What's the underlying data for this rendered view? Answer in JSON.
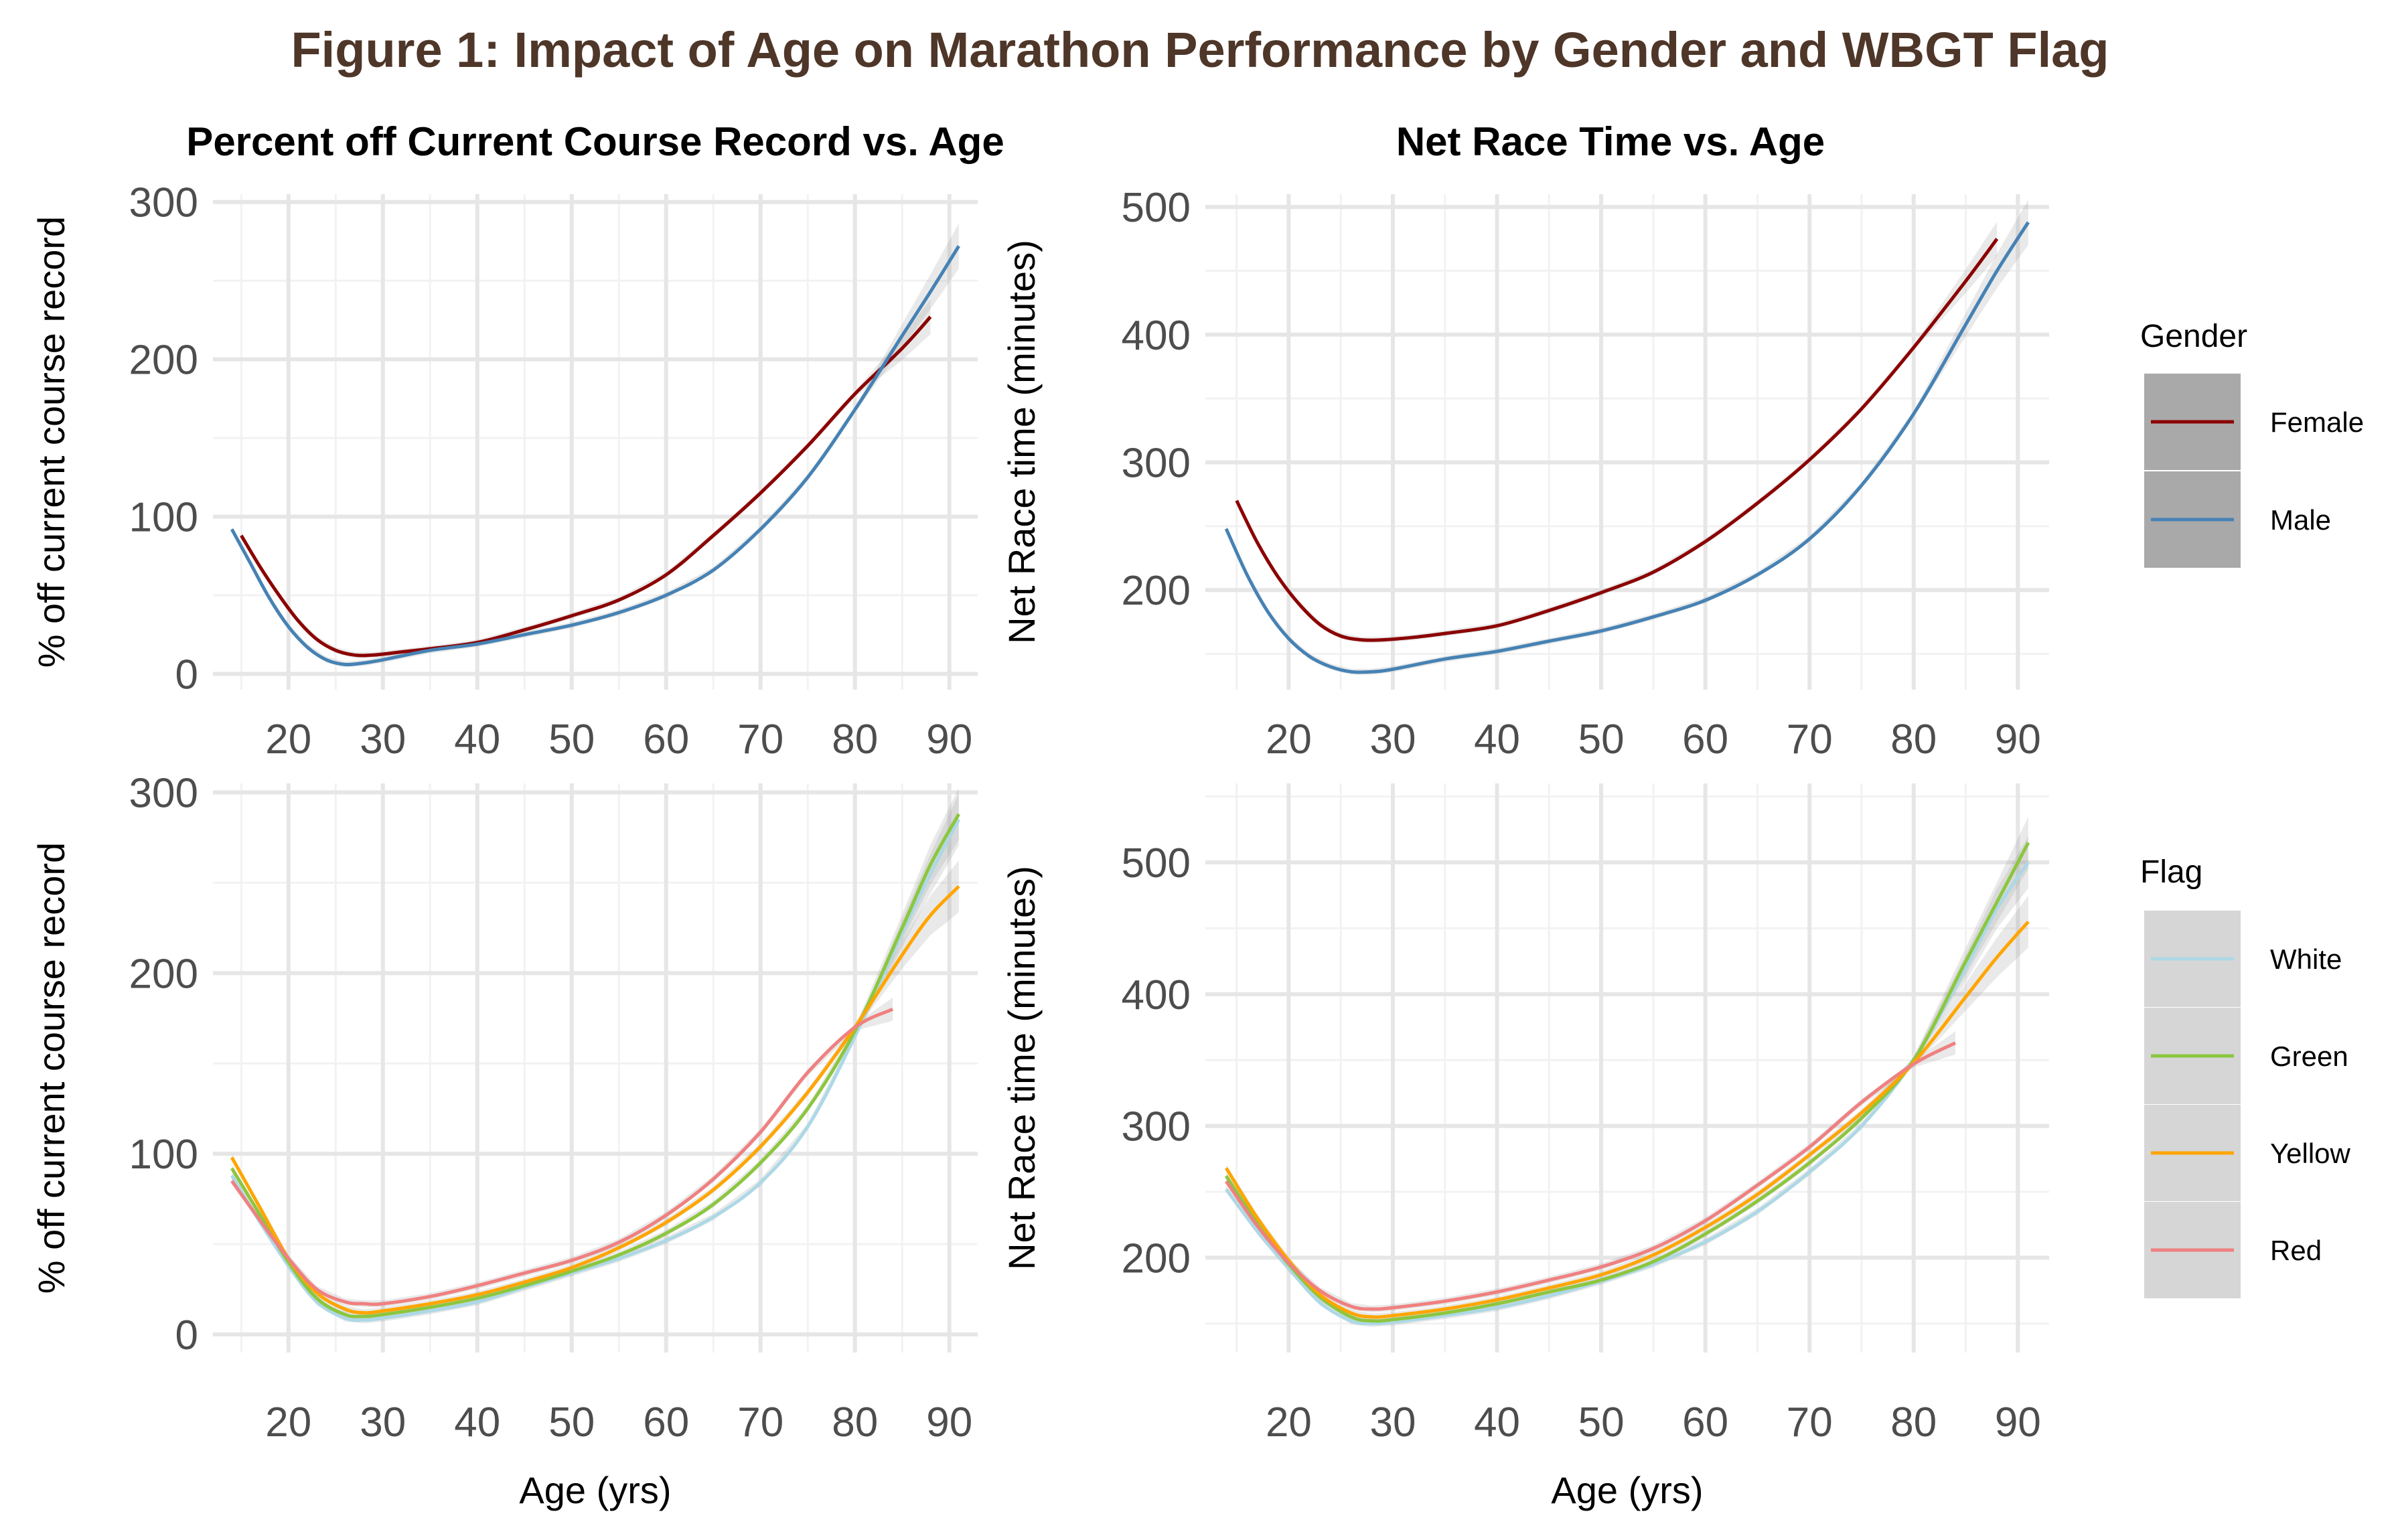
{
  "figure_title": "Figure 1: Impact of Age on Marathon Performance by Gender and WBGT Flag",
  "chart_data": [
    {
      "type": "line",
      "title": "Percent off Current Course Record vs. Age",
      "xlabel": "",
      "ylabel": "% off current course record",
      "xlim": [
        12,
        93
      ],
      "ylim": [
        -10,
        305
      ],
      "xticks": [
        20,
        30,
        40,
        50,
        60,
        70,
        80,
        90
      ],
      "yticks": [
        0,
        100,
        200,
        300
      ],
      "grid": true,
      "legend": "Gender",
      "series": [
        {
          "name": "Female",
          "color": "#8B0000",
          "x": [
            15,
            17,
            19,
            21,
            23,
            25,
            27,
            29,
            32,
            35,
            40,
            45,
            50,
            55,
            60,
            65,
            70,
            75,
            80,
            85,
            88
          ],
          "y": [
            88,
            68,
            50,
            34,
            22,
            15,
            12,
            12,
            14,
            16,
            20,
            28,
            37,
            47,
            63,
            88,
            115,
            145,
            178,
            207,
            227
          ]
        },
        {
          "name": "Male",
          "color": "#4682B4",
          "x": [
            14,
            16,
            18,
            20,
            22,
            24,
            26,
            28,
            30,
            35,
            40,
            45,
            50,
            55,
            60,
            65,
            70,
            75,
            80,
            85,
            88,
            91
          ],
          "y": [
            92,
            70,
            48,
            30,
            17,
            9,
            6,
            7,
            9,
            15,
            19,
            25,
            31,
            39,
            50,
            66,
            92,
            125,
            168,
            215,
            243,
            272
          ]
        }
      ]
    },
    {
      "type": "line",
      "title": "Net Race Time vs. Age",
      "xlabel": "",
      "ylabel": "Net Race time (minutes)",
      "xlim": [
        12,
        93
      ],
      "ylim": [
        122,
        510
      ],
      "xticks": [
        20,
        30,
        40,
        50,
        60,
        70,
        80,
        90
      ],
      "yticks": [
        200,
        300,
        400,
        500
      ],
      "grid": true,
      "legend": "Gender",
      "series": [
        {
          "name": "Female",
          "color": "#8B0000",
          "x": [
            15,
            17,
            19,
            21,
            23,
            25,
            27,
            29,
            32,
            35,
            40,
            45,
            50,
            55,
            60,
            65,
            70,
            75,
            80,
            85,
            88
          ],
          "y": [
            270,
            237,
            210,
            189,
            173,
            164,
            161,
            161,
            163,
            166,
            172,
            184,
            198,
            214,
            238,
            268,
            302,
            342,
            390,
            442,
            475
          ]
        },
        {
          "name": "Male",
          "color": "#4682B4",
          "x": [
            14,
            16,
            18,
            20,
            22,
            24,
            26,
            28,
            30,
            35,
            40,
            45,
            50,
            55,
            60,
            65,
            70,
            75,
            80,
            85,
            88,
            91
          ],
          "y": [
            248,
            212,
            183,
            162,
            148,
            140,
            136,
            136,
            138,
            146,
            152,
            160,
            168,
            179,
            192,
            212,
            240,
            282,
            338,
            408,
            450,
            488
          ]
        }
      ]
    },
    {
      "type": "line",
      "title": "",
      "xlabel": "Age (yrs)",
      "ylabel": "% off current course record",
      "xlim": [
        12,
        93
      ],
      "ylim": [
        -10,
        305
      ],
      "xticks": [
        20,
        30,
        40,
        50,
        60,
        70,
        80,
        90
      ],
      "yticks": [
        0,
        100,
        200,
        300
      ],
      "grid": true,
      "legend": "Flag",
      "series": [
        {
          "name": "White",
          "color": "#ADD8E6",
          "x": [
            14,
            17,
            20,
            23,
            26,
            28,
            30,
            35,
            40,
            45,
            50,
            55,
            60,
            65,
            70,
            75,
            80,
            85,
            88,
            91
          ],
          "y": [
            88,
            62,
            38,
            18,
            9,
            8,
            9,
            13,
            18,
            26,
            34,
            42,
            52,
            65,
            84,
            115,
            165,
            222,
            255,
            285
          ]
        },
        {
          "name": "Green",
          "color": "#8CC63F",
          "x": [
            14,
            17,
            20,
            23,
            26,
            28,
            30,
            35,
            40,
            45,
            50,
            55,
            60,
            65,
            70,
            75,
            80,
            85,
            88,
            91
          ],
          "y": [
            92,
            66,
            40,
            20,
            11,
            10,
            11,
            15,
            20,
            27,
            35,
            44,
            56,
            72,
            95,
            125,
            168,
            225,
            260,
            288
          ]
        },
        {
          "name": "Yellow",
          "color": "#FFA500",
          "x": [
            14,
            17,
            20,
            23,
            26,
            28,
            30,
            35,
            40,
            45,
            50,
            55,
            60,
            65,
            70,
            75,
            80,
            85,
            88,
            91
          ],
          "y": [
            98,
            70,
            42,
            23,
            14,
            12,
            13,
            17,
            22,
            29,
            37,
            48,
            62,
            80,
            104,
            134,
            170,
            210,
            232,
            248
          ]
        },
        {
          "name": "Red",
          "color": "#F08080",
          "x": [
            14,
            17,
            20,
            23,
            26,
            28,
            30,
            35,
            40,
            45,
            50,
            55,
            60,
            65,
            70,
            75,
            80,
            84
          ],
          "y": [
            85,
            63,
            42,
            25,
            18,
            17,
            17,
            21,
            27,
            34,
            41,
            51,
            66,
            86,
            112,
            145,
            170,
            180
          ]
        }
      ]
    },
    {
      "type": "line",
      "title": "",
      "xlabel": "Age (yrs)",
      "ylabel": "Net Race time (minutes)",
      "xlim": [
        12,
        93
      ],
      "ylim": [
        128,
        560
      ],
      "xticks": [
        20,
        30,
        40,
        50,
        60,
        70,
        80,
        90
      ],
      "yticks": [
        200,
        300,
        400,
        500
      ],
      "grid": true,
      "legend": "Flag",
      "series": [
        {
          "name": "White",
          "color": "#ADD8E6",
          "x": [
            14,
            17,
            20,
            23,
            26,
            28,
            30,
            35,
            40,
            45,
            50,
            55,
            60,
            65,
            70,
            75,
            80,
            85,
            88,
            91
          ],
          "y": [
            252,
            220,
            192,
            166,
            152,
            150,
            151,
            156,
            162,
            171,
            182,
            195,
            212,
            235,
            265,
            300,
            350,
            420,
            465,
            500
          ]
        },
        {
          "name": "Green",
          "color": "#8CC63F",
          "x": [
            14,
            17,
            20,
            23,
            26,
            28,
            30,
            35,
            40,
            45,
            50,
            55,
            60,
            65,
            70,
            75,
            80,
            85,
            88,
            91
          ],
          "y": [
            262,
            226,
            195,
            170,
            155,
            152,
            153,
            158,
            165,
            174,
            183,
            197,
            218,
            243,
            272,
            306,
            350,
            425,
            470,
            515
          ]
        },
        {
          "name": "Yellow",
          "color": "#FFA500",
          "x": [
            14,
            17,
            20,
            23,
            26,
            28,
            30,
            35,
            40,
            45,
            50,
            55,
            60,
            65,
            70,
            75,
            80,
            85,
            88,
            91
          ],
          "y": [
            268,
            230,
            198,
            172,
            158,
            155,
            156,
            161,
            168,
            177,
            187,
            202,
            223,
            248,
            278,
            310,
            348,
            398,
            428,
            455
          ]
        },
        {
          "name": "Red",
          "color": "#F08080",
          "x": [
            14,
            17,
            20,
            23,
            26,
            28,
            30,
            35,
            40,
            45,
            50,
            55,
            60,
            65,
            70,
            75,
            80,
            84
          ],
          "y": [
            258,
            224,
            196,
            175,
            163,
            161,
            162,
            167,
            174,
            183,
            193,
            207,
            228,
            255,
            284,
            318,
            347,
            363
          ]
        }
      ]
    }
  ],
  "legends": {
    "gender": {
      "title": "Gender",
      "items": [
        {
          "label": "Female",
          "color": "#8B0000"
        },
        {
          "label": "Male",
          "color": "#4682B4"
        }
      ]
    },
    "flag": {
      "title": "Flag",
      "items": [
        {
          "label": "White",
          "color": "#ADD8E6"
        },
        {
          "label": "Green",
          "color": "#8CC63F"
        },
        {
          "label": "Yellow",
          "color": "#FFA500"
        },
        {
          "label": "Red",
          "color": "#F08080"
        }
      ]
    }
  }
}
